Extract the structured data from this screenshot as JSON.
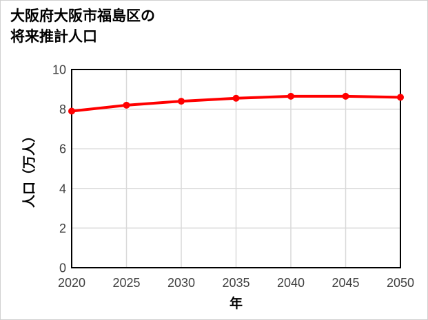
{
  "chart_data": {
    "type": "line",
    "title": "大阪府大阪市福島区の将来推計人口",
    "title_lines": [
      "大阪府大阪市福島区の",
      "将来推計人口"
    ],
    "xlabel": "年",
    "ylabel": "人口（万人）",
    "x": [
      2020,
      2025,
      2030,
      2035,
      2040,
      2045,
      2050
    ],
    "xtick_labels": [
      "2020",
      "2025",
      "2030",
      "2035",
      "2040",
      "2045",
      "2050"
    ],
    "series": [
      {
        "name": "将来推計人口",
        "values": [
          7.9,
          8.2,
          8.4,
          8.55,
          8.65,
          8.65,
          8.6
        ]
      }
    ],
    "xlim": [
      2020,
      2050
    ],
    "ylim": [
      0,
      10
    ],
    "yticks": [
      0,
      2,
      4,
      6,
      8,
      10
    ],
    "ytick_labels": [
      "0",
      "2",
      "4",
      "6",
      "8",
      "10"
    ],
    "grid": true,
    "legend": "none",
    "colors": {
      "line": "#ff0000",
      "marker": "#ff0000",
      "grid": "#d9d9d9",
      "axis_frame": "#000000",
      "tick_text": "#404040",
      "title_text": "#000000",
      "image_border": "#d0d0d0",
      "background": "#ffffff"
    }
  }
}
